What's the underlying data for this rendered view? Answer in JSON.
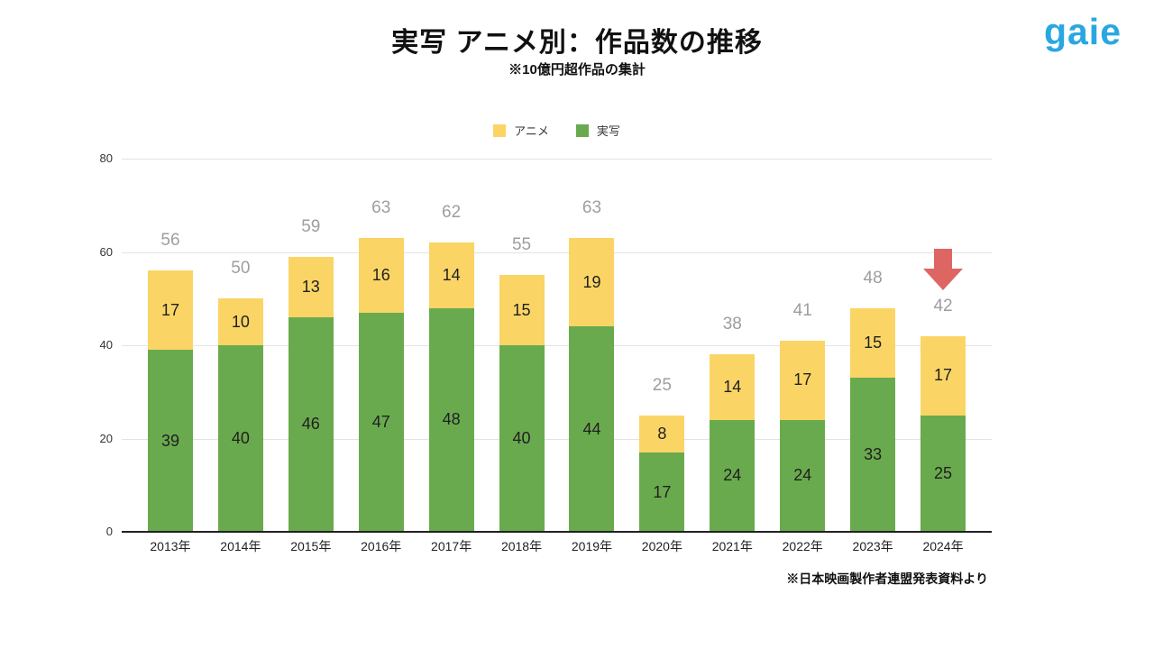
{
  "header": {
    "title": "実写 アニメ別：作品数の推移",
    "subtitle": "※10億円超作品の集計",
    "logo_text": "gaie",
    "logo_color": "#2AA7E0"
  },
  "legend": [
    {
      "label": "アニメ",
      "color": "#FAD565"
    },
    {
      "label": "実写",
      "color": "#6AAA4E"
    }
  ],
  "footnote": "※日本映画製作者連盟発表資料より",
  "chart_data": {
    "type": "bar",
    "stacked": true,
    "title": "実写 アニメ別：作品数の推移",
    "subtitle": "※10億円超作品の集計",
    "categories": [
      "2013年",
      "2014年",
      "2015年",
      "2016年",
      "2017年",
      "2018年",
      "2019年",
      "2020年",
      "2021年",
      "2022年",
      "2023年",
      "2024年"
    ],
    "series": [
      {
        "name": "実写",
        "color": "#6AAA4E",
        "values": [
          39,
          40,
          46,
          47,
          48,
          40,
          44,
          17,
          24,
          24,
          33,
          25
        ]
      },
      {
        "name": "アニメ",
        "color": "#FAD565",
        "values": [
          17,
          10,
          13,
          16,
          14,
          15,
          19,
          8,
          14,
          17,
          15,
          17
        ]
      }
    ],
    "totals": [
      56,
      50,
      59,
      63,
      62,
      55,
      63,
      25,
      38,
      41,
      48,
      42
    ],
    "yticks": [
      0,
      20,
      40,
      60,
      80
    ],
    "ylim": [
      0,
      80
    ],
    "grid": true,
    "legend_position": "top",
    "total_label_color": "#9E9E9E",
    "bar_label_color": "#1F1F1F",
    "gridline_color": "#E3E3E3",
    "axis_color": "#212121",
    "annotation": {
      "type": "down-arrow",
      "category": "2024年",
      "color": "#DD6663"
    }
  }
}
